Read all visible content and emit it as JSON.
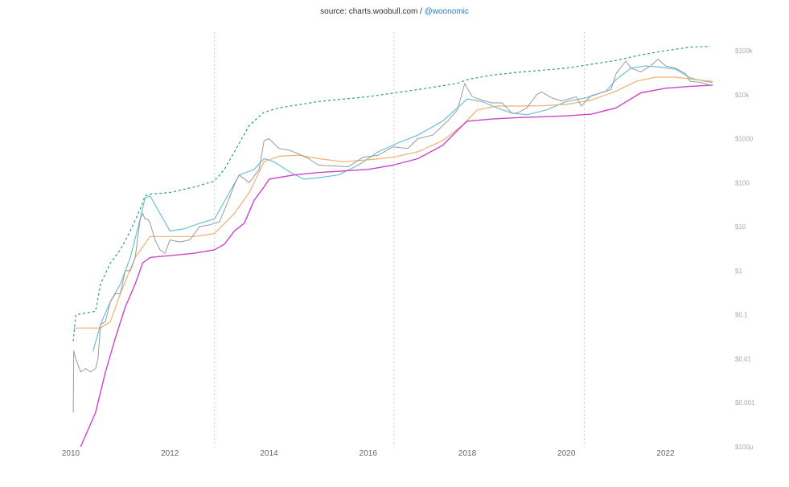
{
  "source": {
    "text": "source: charts.woobull.com / ",
    "handle": "@woonomic"
  },
  "chart_data": {
    "type": "line",
    "x_ticks": [
      "2010",
      "2012",
      "2014",
      "2016",
      "2018",
      "2020",
      "2022"
    ],
    "y_ticks": [
      "$100k",
      "$10k",
      "$1000",
      "$100",
      "$10",
      "$1",
      "$0.1",
      "$0.01",
      "$0.001",
      "$100µ"
    ],
    "y_scale": "log",
    "ylim": [
      0.0001,
      100000
    ],
    "xlim": [
      2010.0,
      2023.2
    ],
    "halving_lines": [
      2012.9,
      2016.52,
      2020.36
    ],
    "colors": {
      "price": "#9a9a9a",
      "top_cap": "#2a9d82",
      "realized": "#6ec0d8",
      "avg": "#f0b070",
      "floor": "#cc44cc",
      "halving": "#cccccc",
      "tick": "#aaaaaa"
    },
    "series": [
      {
        "key": "top_cap",
        "style": "dashed",
        "x": [
          2010.05,
          2010.1,
          2010.5,
          2010.6,
          2010.8,
          2011.0,
          2011.2,
          2011.4,
          2011.5,
          2011.6,
          2012.0,
          2012.5,
          2012.9,
          2013.1,
          2013.3,
          2013.6,
          2013.9,
          2014.2,
          2015.0,
          2016.0,
          2017.0,
          2017.8,
          2018.0,
          2018.5,
          2019.0,
          2020.0,
          2021.0,
          2021.5,
          2022.0,
          2022.5,
          2022.9
        ],
        "values": [
          0.025,
          0.1,
          0.12,
          0.5,
          1.5,
          3,
          8,
          25,
          50,
          55,
          60,
          80,
          110,
          200,
          500,
          2000,
          4000,
          5000,
          7000,
          9000,
          13000,
          18000,
          22000,
          28000,
          32000,
          40000,
          60000,
          80000,
          100000,
          120000,
          125000
        ]
      },
      {
        "key": "realized",
        "style": "solid",
        "x": [
          2010.45,
          2010.6,
          2010.8,
          2011.0,
          2011.2,
          2011.4,
          2011.5,
          2011.6,
          2011.8,
          2012.0,
          2012.3,
          2012.6,
          2012.9,
          2013.2,
          2013.4,
          2013.7,
          2013.9,
          2014.1,
          2014.4,
          2014.7,
          2015.0,
          2015.4,
          2015.8,
          2016.2,
          2016.6,
          2017.0,
          2017.5,
          2018.0,
          2018.3,
          2018.6,
          2018.9,
          2019.2,
          2019.6,
          2020.0,
          2020.4,
          2020.8,
          2021.0,
          2021.3,
          2021.6,
          2021.9,
          2022.2,
          2022.5,
          2022.8,
          2022.95
        ],
        "values": [
          0.015,
          0.06,
          0.2,
          0.5,
          2,
          15,
          45,
          50,
          20,
          8,
          9,
          12,
          15,
          60,
          150,
          200,
          350,
          300,
          180,
          120,
          130,
          150,
          250,
          500,
          800,
          1200,
          2500,
          8000,
          7000,
          5000,
          3800,
          3500,
          4500,
          7000,
          8500,
          12000,
          22000,
          40000,
          45000,
          42000,
          38000,
          24000,
          20000,
          19000
        ]
      },
      {
        "key": "avg",
        "style": "solid",
        "x": [
          2010.05,
          2010.6,
          2010.8,
          2011.0,
          2011.3,
          2011.6,
          2012.0,
          2012.5,
          2012.9,
          2013.3,
          2013.6,
          2013.9,
          2014.2,
          2014.6,
          2015.0,
          2015.5,
          2016.0,
          2016.5,
          2017.0,
          2017.5,
          2017.9,
          2018.2,
          2018.6,
          2019.0,
          2019.5,
          2020.0,
          2020.5,
          2021.0,
          2021.4,
          2021.8,
          2022.2,
          2022.6,
          2022.95
        ],
        "values": [
          0.05,
          0.05,
          0.07,
          0.3,
          2,
          6,
          6,
          6,
          7,
          20,
          60,
          300,
          400,
          420,
          350,
          300,
          330,
          380,
          500,
          900,
          2000,
          4500,
          5500,
          5500,
          5600,
          6000,
          7500,
          12000,
          20000,
          25000,
          25000,
          22000,
          20000
        ]
      },
      {
        "key": "floor",
        "style": "solid",
        "x": [
          2010.2,
          2010.5,
          2010.7,
          2010.9,
          2011.1,
          2011.3,
          2011.45,
          2011.6,
          2011.8,
          2012.0,
          2012.5,
          2012.9,
          2013.1,
          2013.3,
          2013.5,
          2013.7,
          2013.9,
          2014.0,
          2014.5,
          2015.0,
          2016.0,
          2016.5,
          2017.0,
          2017.5,
          2017.9,
          2018.0,
          2018.5,
          2019.0,
          2020.0,
          2020.5,
          2021.0,
          2021.5,
          2022.0,
          2022.5,
          2022.95
        ],
        "values": [
          0.0001,
          0.0006,
          0.005,
          0.03,
          0.15,
          0.5,
          1.5,
          2,
          2.1,
          2.2,
          2.5,
          3,
          4,
          8,
          12,
          40,
          80,
          120,
          150,
          170,
          200,
          250,
          350,
          700,
          2000,
          2500,
          2800,
          3000,
          3300,
          3600,
          5000,
          11000,
          14000,
          15500,
          16500
        ]
      },
      {
        "key": "price",
        "style": "solid",
        "x": [
          2010.05,
          2010.06,
          2010.1,
          2010.2,
          2010.3,
          2010.4,
          2010.5,
          2010.55,
          2010.6,
          2010.7,
          2010.8,
          2010.9,
          2011.0,
          2011.1,
          2011.2,
          2011.3,
          2011.4,
          2011.45,
          2011.5,
          2011.55,
          2011.6,
          2011.7,
          2011.8,
          2011.9,
          2012.0,
          2012.2,
          2012.4,
          2012.6,
          2012.8,
          2013.0,
          2013.2,
          2013.3,
          2013.4,
          2013.6,
          2013.8,
          2013.9,
          2014.0,
          2014.2,
          2014.4,
          2014.6,
          2014.8,
          2015.0,
          2015.3,
          2015.6,
          2015.9,
          2016.2,
          2016.5,
          2016.8,
          2017.0,
          2017.3,
          2017.6,
          2017.8,
          2017.95,
          2018.0,
          2018.1,
          2018.3,
          2018.5,
          2018.7,
          2018.9,
          2019.0,
          2019.2,
          2019.4,
          2019.5,
          2019.7,
          2019.9,
          2020.2,
          2020.3,
          2020.5,
          2020.7,
          2020.9,
          2021.0,
          2021.2,
          2021.3,
          2021.5,
          2021.7,
          2021.85,
          2022.0,
          2022.2,
          2022.4,
          2022.5,
          2022.7,
          2022.9,
          2022.95
        ],
        "values": [
          0.0006,
          0.015,
          0.01,
          0.005,
          0.006,
          0.005,
          0.006,
          0.01,
          0.06,
          0.07,
          0.2,
          0.3,
          0.3,
          1,
          1,
          2,
          15,
          20,
          15,
          15,
          12,
          5,
          3,
          2.5,
          5,
          4.5,
          5,
          10,
          11,
          13,
          45,
          90,
          150,
          100,
          200,
          900,
          1000,
          600,
          550,
          450,
          350,
          250,
          240,
          230,
          380,
          420,
          650,
          600,
          1000,
          1200,
          2500,
          4500,
          18000,
          14000,
          9000,
          7500,
          6500,
          6500,
          3800,
          3800,
          5000,
          10000,
          11500,
          8500,
          7200,
          9000,
          5500,
          9500,
          11000,
          13000,
          30000,
          58000,
          40000,
          33000,
          45000,
          64000,
          45000,
          40000,
          30000,
          20000,
          19000,
          16500,
          17000
        ]
      }
    ]
  }
}
